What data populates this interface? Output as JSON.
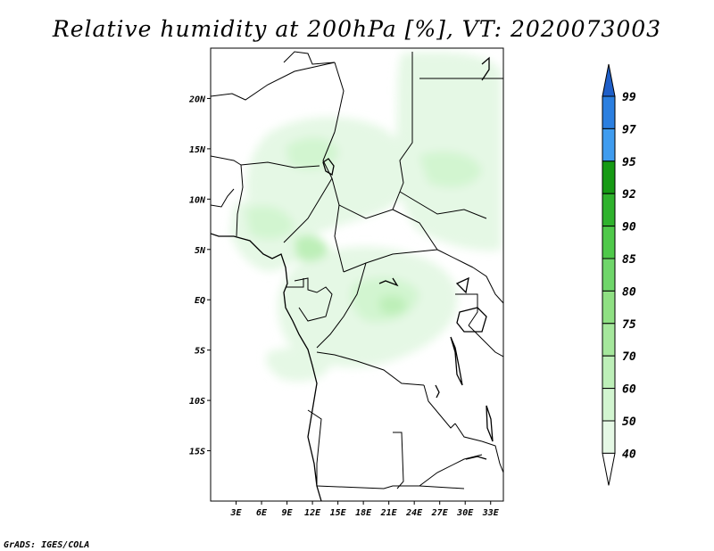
{
  "title": "Relative humidity at 200hPa [%], VT: 2020073003",
  "credit": "GrADS: IGES/COLA",
  "map": {
    "lon_range": [
      0,
      34.5
    ],
    "lat_range": [
      -20,
      25
    ],
    "lon_ticks": [
      "3E",
      "6E",
      "9E",
      "12E",
      "15E",
      "18E",
      "21E",
      "24E",
      "27E",
      "30E",
      "33E"
    ],
    "lat_ticks": [
      "20N",
      "15N",
      "10N",
      "5N",
      "EQ",
      "5S",
      "10S",
      "15S"
    ]
  },
  "colorbar": {
    "labels": [
      "40",
      "50",
      "60",
      "70",
      "75",
      "80",
      "85",
      "90",
      "92",
      "95",
      "97",
      "99"
    ],
    "colors": [
      "#ffffff",
      "#e5f8e5",
      "#d2f5d0",
      "#bdefb8",
      "#a5e79c",
      "#8fe083",
      "#6fd66a",
      "#4fc94a",
      "#2fb22d",
      "#169a14",
      "#3f9cef",
      "#2b7fe0",
      "#1f5fc8"
    ]
  }
}
